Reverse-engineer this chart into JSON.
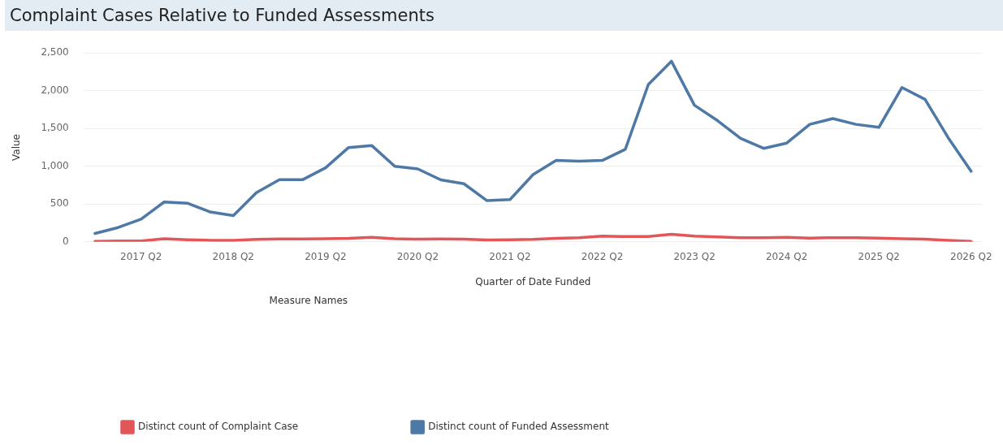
{
  "chart_data": {
    "type": "line",
    "title": "Complaint Cases Relative to Funded Assessments",
    "xlabel": "Quarter of Date Funded",
    "ylabel": "Value",
    "legend_title": "Measure Names",
    "categories": [
      null,
      null,
      "2017 Q2",
      null,
      null,
      null,
      "2018 Q2",
      null,
      null,
      null,
      "2019 Q2",
      null,
      null,
      null,
      "2020 Q2",
      null,
      null,
      null,
      "2021 Q2",
      null,
      null,
      null,
      "2022 Q2",
      null,
      null,
      null,
      "2023 Q2",
      null,
      null,
      null,
      "2024 Q2",
      null,
      null,
      null,
      "2025 Q2",
      null,
      null,
      null,
      "2026 Q2"
    ],
    "series": [
      {
        "name": "Distinct count of Complaint Case",
        "color": "#e15759",
        "values": [
          5,
          10,
          12,
          40,
          28,
          20,
          20,
          32,
          38,
          38,
          40,
          45,
          60,
          40,
          35,
          38,
          35,
          25,
          28,
          32,
          45,
          55,
          75,
          70,
          70,
          100,
          75,
          65,
          55,
          55,
          60,
          50,
          55,
          55,
          48,
          40,
          35,
          20,
          5
        ]
      },
      {
        "name": "Distinct count of Funded Assessment",
        "color": "#4e79a7",
        "values": [
          110,
          189,
          301,
          527,
          512,
          395,
          347,
          650,
          822,
          822,
          980,
          1248,
          1275,
          1000,
          965,
          820,
          769,
          545,
          560,
          890,
          1077,
          1066,
          1077,
          1224,
          2083,
          2390,
          1808,
          1604,
          1369,
          1237,
          1307,
          1555,
          1632,
          1555,
          1516,
          2043,
          1885,
          1380,
          934
        ]
      }
    ],
    "ylim": [
      0,
      2500
    ],
    "yticks": [
      {
        "value": 0,
        "label": "0"
      },
      {
        "value": 500,
        "label": "500"
      },
      {
        "value": 1000,
        "label": "1,000"
      },
      {
        "value": 1500,
        "label": "1,500"
      },
      {
        "value": 2000,
        "label": "2,000"
      },
      {
        "value": 2500,
        "label": "2,500"
      }
    ],
    "grid": "y",
    "legend": "bottom",
    "marker": "none",
    "line_style": "solid"
  }
}
